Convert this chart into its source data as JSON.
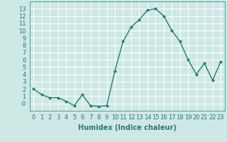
{
  "x": [
    0,
    1,
    2,
    3,
    4,
    5,
    6,
    7,
    8,
    9,
    10,
    11,
    12,
    13,
    14,
    15,
    16,
    17,
    18,
    19,
    20,
    21,
    22,
    23
  ],
  "y": [
    2,
    1.2,
    0.8,
    0.8,
    0.3,
    -0.3,
    1.2,
    -0.3,
    -0.4,
    -0.3,
    4.5,
    8.5,
    10.5,
    11.5,
    12.8,
    13.0,
    12.0,
    10.0,
    8.5,
    6.0,
    4.0,
    5.5,
    3.2,
    5.7
  ],
  "line_color": "#2d7a6e",
  "marker": "D",
  "marker_size": 2,
  "bg_color": "#cde8e5",
  "grid_color": "#ffffff",
  "xlabel": "Humidex (Indice chaleur)",
  "ylim": [
    -1,
    14
  ],
  "xlim": [
    -0.5,
    23.5
  ],
  "yticks": [
    0,
    1,
    2,
    3,
    4,
    5,
    6,
    7,
    8,
    9,
    10,
    11,
    12,
    13
  ],
  "xticks": [
    0,
    1,
    2,
    3,
    4,
    5,
    6,
    7,
    8,
    9,
    10,
    11,
    12,
    13,
    14,
    15,
    16,
    17,
    18,
    19,
    20,
    21,
    22,
    23
  ],
  "xlabel_fontsize": 7,
  "tick_fontsize": 6,
  "ytick_labels": [
    "-0",
    "1",
    "2",
    "3",
    "4",
    "5",
    "6",
    "7",
    "8",
    "9",
    "10",
    "11",
    "12",
    "13"
  ]
}
